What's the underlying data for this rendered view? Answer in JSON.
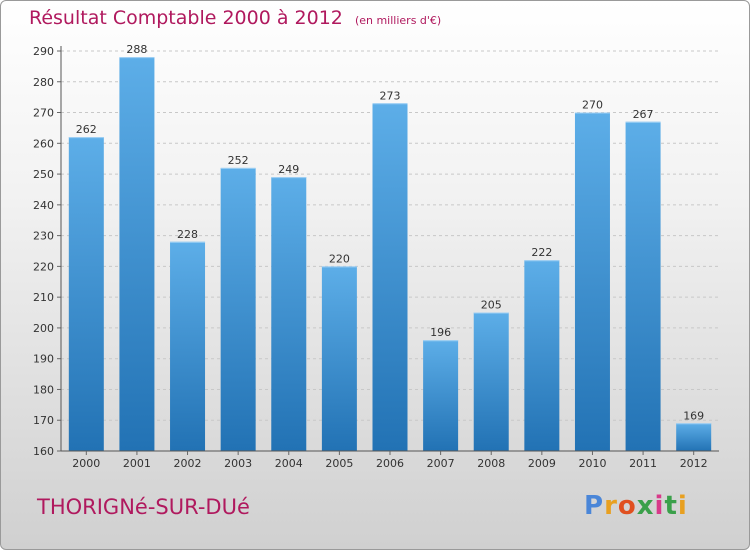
{
  "title": "Résultat Comptable 2000 à 2012",
  "subtitle": "(en milliers d'€)",
  "place_name": "THORIGNé-SUR-DUé",
  "logo": {
    "text": "Proxiti",
    "letters": [
      "P",
      "r",
      "o",
      "x",
      "i",
      "t",
      "i"
    ],
    "colors": [
      "#4a86d8",
      "#e8a020",
      "#e05020",
      "#3aa04a",
      "#d83a8a",
      "#3aa04a",
      "#e8a020"
    ]
  },
  "colors": {
    "accent": "#b0195e",
    "bar_top": "#5daee8",
    "bar_bottom": "#2272b4"
  },
  "chart_data": {
    "type": "bar",
    "categories": [
      "2000",
      "2001",
      "2002",
      "2003",
      "2004",
      "2005",
      "2006",
      "2007",
      "2008",
      "2009",
      "2010",
      "2011",
      "2012"
    ],
    "values": [
      262,
      288,
      228,
      252,
      249,
      220,
      273,
      196,
      205,
      222,
      270,
      267,
      169
    ],
    "ylim": [
      160,
      290
    ],
    "yticks": [
      160,
      170,
      180,
      190,
      200,
      210,
      220,
      230,
      240,
      250,
      260,
      270,
      280,
      290
    ],
    "grid": "horizontal dashed",
    "xlabel": "",
    "ylabel": ""
  }
}
